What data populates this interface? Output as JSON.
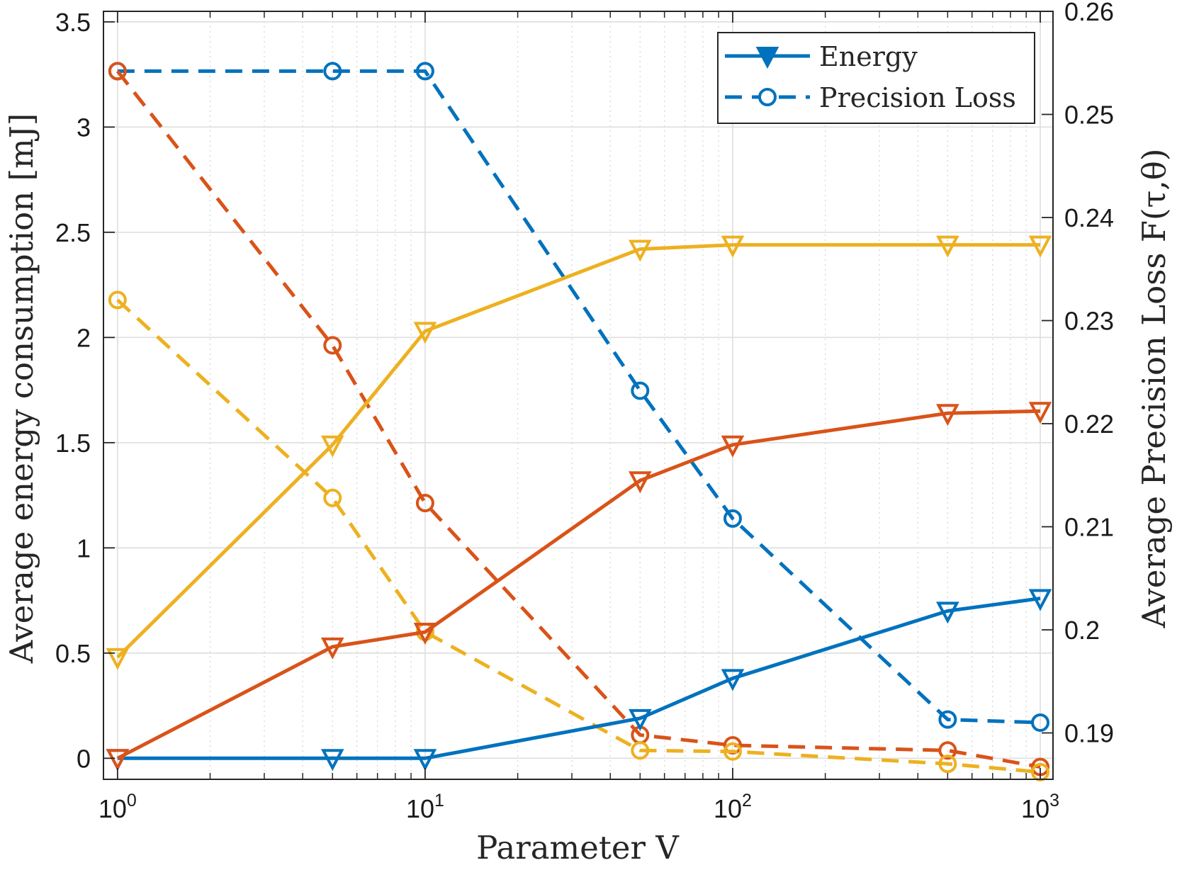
{
  "chart_data": {
    "type": "line",
    "xlabel": "Parameter V",
    "ylabel_left": "Average energy consumption [mJ]",
    "ylabel_right": "Average Precision Loss F(τ,θ)",
    "x_scale": "log",
    "xlim": [
      0.9,
      1100
    ],
    "ylim_left": [
      -0.1,
      3.55
    ],
    "ylim_right": [
      0.1855,
      0.26
    ],
    "x_ticks": [
      1,
      10,
      100,
      1000
    ],
    "x_tick_labels": [
      {
        "base": "10",
        "exp": "0"
      },
      {
        "base": "10",
        "exp": "1"
      },
      {
        "base": "10",
        "exp": "2"
      },
      {
        "base": "10",
        "exp": "3"
      }
    ],
    "y_ticks_left": [
      0,
      0.5,
      1,
      1.5,
      2,
      2.5,
      3,
      3.5
    ],
    "y_tick_labels_left": [
      "0",
      "0.5",
      "1",
      "1.5",
      "2",
      "2.5",
      "3",
      "3.5"
    ],
    "y_ticks_right": [
      0.19,
      0.2,
      0.21,
      0.22,
      0.23,
      0.24,
      0.25,
      0.26
    ],
    "y_tick_labels_right": [
      "0.19",
      "0.2",
      "0.21",
      "0.22",
      "0.23",
      "0.24",
      "0.25",
      "0.26"
    ],
    "grid": true,
    "legend_position": "top-right",
    "legend": [
      {
        "label": "Energy",
        "line": "solid",
        "marker": "triangle-down"
      },
      {
        "label": "Precision Loss",
        "line": "dashed",
        "marker": "circle"
      }
    ],
    "x": [
      1,
      5,
      10,
      50,
      100,
      500,
      1000
    ],
    "series": [
      {
        "metric": "energy",
        "axis": "left",
        "color": "#0072bd",
        "line": "solid",
        "marker": "triangle-down",
        "values": [
          0,
          0,
          0,
          0.19,
          0.38,
          0.7,
          0.76
        ]
      },
      {
        "metric": "energy",
        "axis": "left",
        "color": "#d95319",
        "line": "solid",
        "marker": "triangle-down",
        "values": [
          0,
          0.53,
          0.6,
          1.32,
          1.49,
          1.64,
          1.65
        ]
      },
      {
        "metric": "energy",
        "axis": "left",
        "color": "#edb120",
        "line": "solid",
        "marker": "triangle-down",
        "values": [
          0.48,
          1.49,
          2.03,
          2.42,
          2.44,
          2.44,
          2.44
        ]
      },
      {
        "metric": "precision_loss",
        "axis": "right",
        "color": "#0072bd",
        "line": "dashed",
        "marker": "circle",
        "values": [
          0.2542,
          0.2542,
          0.2542,
          0.2232,
          0.2108,
          0.1913,
          0.191
        ]
      },
      {
        "metric": "precision_loss",
        "axis": "right",
        "color": "#d95319",
        "line": "dashed",
        "marker": "circle",
        "values": [
          0.2542,
          0.2276,
          0.2123,
          0.1898,
          0.1888,
          0.1883,
          0.1867
        ]
      },
      {
        "metric": "precision_loss",
        "axis": "right",
        "color": "#edb120",
        "line": "dashed",
        "marker": "circle",
        "values": [
          0.232,
          0.2128,
          0.1998,
          0.1883,
          0.1882,
          0.187,
          0.1862
        ]
      }
    ]
  }
}
